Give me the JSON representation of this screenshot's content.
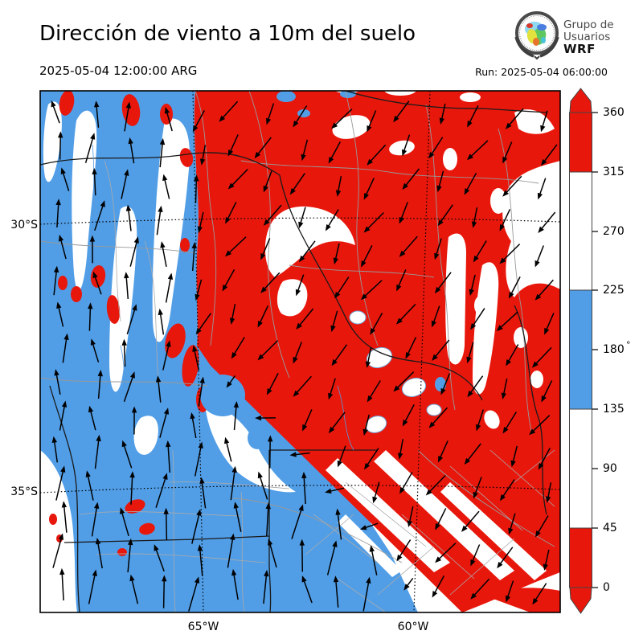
{
  "header": {
    "title": "Dirección de viento a 10m del suelo",
    "valid_time": "2025-05-04 12:00:00 ARG",
    "run_time": "Run: 2025-05-04 06:00:00",
    "logo": {
      "org_line1": "Grupo de",
      "org_line2": "Usuarios",
      "org_line3": "WRF"
    }
  },
  "map": {
    "lat_ticks": [
      "30°S",
      "35°S"
    ],
    "lon_ticks": [
      "65°W",
      "60°W"
    ]
  },
  "colorbar": {
    "unit": "°",
    "ticks": [
      "360",
      "315",
      "270",
      "225",
      "180",
      "135",
      "90",
      "45",
      "0"
    ],
    "segments": [
      {
        "range": "315-360",
        "color": "#e8170c"
      },
      {
        "range": "225-315",
        "color": "#ffffff"
      },
      {
        "range": "135-225",
        "color": "#519ee7"
      },
      {
        "range": "45-135",
        "color": "#ffffff"
      },
      {
        "range": "0-45",
        "color": "#e8170c"
      }
    ]
  },
  "colors": {
    "wind_dir_red": "#e8170c",
    "wind_dir_blue": "#519ee7",
    "map_background": "#ffffff",
    "arrow": "#000000",
    "province_border": "#999999",
    "country_border": "#1a1a1a"
  }
}
